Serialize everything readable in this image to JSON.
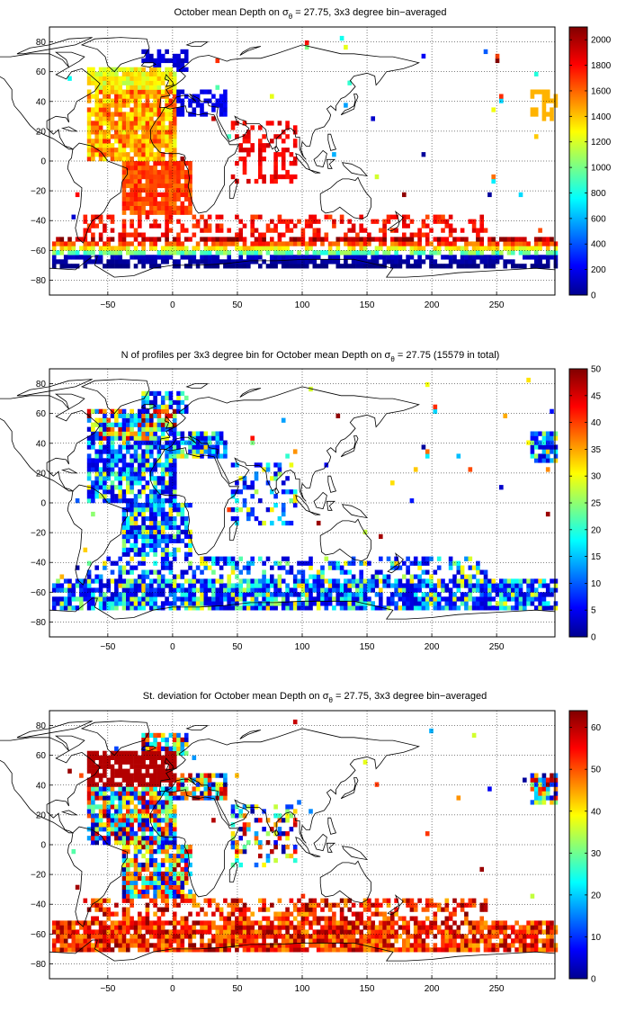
{
  "figure": {
    "panels": [
      {
        "title": "October mean Depth on σθ = 27.75, 3x3 degree bin−averaged",
        "title_parts": {
          "a": "October mean Depth on σ",
          "sub": "θ",
          "b": " = 27.75, 3x3 degree bin−averaged"
        },
        "colorbar": {
          "min": 0,
          "max": 2100,
          "ticks": [
            "0",
            "200",
            "400",
            "600",
            "800",
            "1000",
            "1200",
            "1400",
            "1600",
            "1800",
            "2000"
          ],
          "tick_values": [
            0,
            200,
            400,
            600,
            800,
            1000,
            1200,
            1400,
            1600,
            1800,
            2000
          ]
        }
      },
      {
        "title": "N of profiles per 3x3 degree bin for October mean Depth on σθ = 27.75 (15579 in total)",
        "title_parts": {
          "a": "N of profiles per 3x3 degree bin for October mean Depth on σ",
          "sub": "θ",
          "b": " = 27.75 (15579 in total)"
        },
        "colorbar": {
          "min": 0,
          "max": 50,
          "ticks": [
            "0",
            "5",
            "10",
            "15",
            "20",
            "25",
            "30",
            "35",
            "40",
            "45",
            "50"
          ],
          "tick_values": [
            0,
            5,
            10,
            15,
            20,
            25,
            30,
            35,
            40,
            45,
            50
          ]
        }
      },
      {
        "title": "St. deviation for October mean Depth onσθ = 27.75, 3x3 degree bin−averaged",
        "title_parts": {
          "a": "St. deviation for October mean Depth on σ",
          "sub": "θ",
          "b": " = 27.75, 3x3 degree bin−averaged"
        },
        "colorbar": {
          "min": 0,
          "max": 64,
          "ticks": [
            "0",
            "10",
            "20",
            "30",
            "40",
            "50",
            "60"
          ],
          "tick_values": [
            0,
            10,
            20,
            30,
            40,
            50,
            60
          ]
        }
      }
    ],
    "x_ticks": [
      "−50",
      "0",
      "50",
      "100",
      "150",
      "200",
      "250"
    ],
    "x_tick_values": [
      -50,
      0,
      50,
      100,
      150,
      200,
      250
    ],
    "y_ticks": [
      "80",
      "60",
      "40",
      "20",
      "0",
      "−20",
      "−40",
      "−60",
      "−80"
    ],
    "y_tick_values": [
      80,
      60,
      40,
      20,
      0,
      -20,
      -40,
      -60,
      -80
    ],
    "x_range": [
      -95,
      295
    ],
    "y_range": [
      -90,
      90
    ],
    "grid": true,
    "colormap": "jet"
  }
}
